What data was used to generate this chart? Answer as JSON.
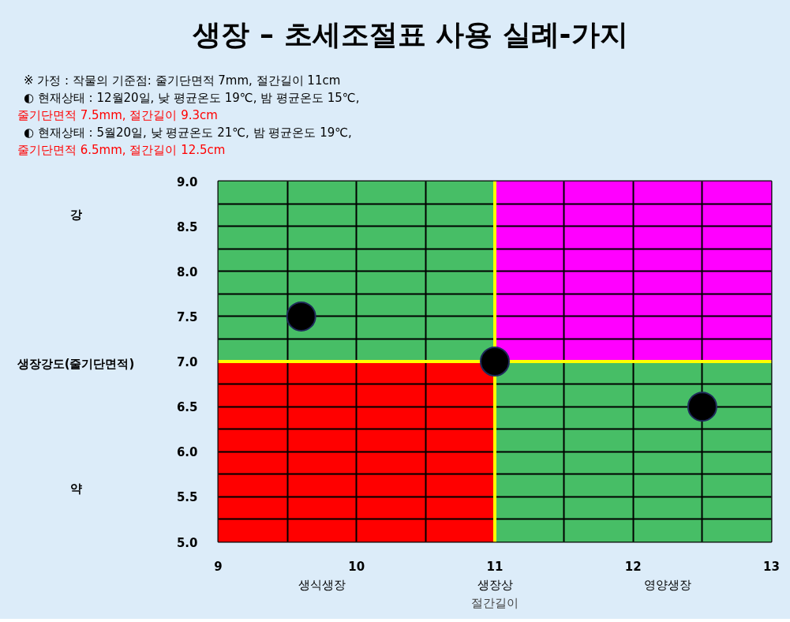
{
  "chart_data": {
    "type": "scatter",
    "title": "생장 – 초세조절표 사용 실례-가지",
    "xlabel": "절간길이",
    "ylabel": "생장강도(줄기단면적)",
    "xlim": [
      9,
      13
    ],
    "ylim": [
      5,
      9
    ],
    "xticks": [
      9,
      {
        "value": 9.5,
        "label": null
      },
      10,
      {
        "value": 10.5,
        "label": null
      },
      11,
      {
        "value": 11.5,
        "label": null
      },
      12,
      {
        "value": 12.5,
        "label": null
      },
      13
    ],
    "yticks": [
      {
        "value": 5.0,
        "label": "5.0"
      },
      {
        "value": 5.25,
        "label": null
      },
      {
        "value": 5.5,
        "label": "5.5"
      },
      {
        "value": 5.75,
        "label": null
      },
      {
        "value": 6.0,
        "label": "6.0"
      },
      {
        "value": 6.25,
        "label": null
      },
      {
        "value": 6.5,
        "label": "6.5"
      },
      {
        "value": 6.75,
        "label": null
      },
      {
        "value": 7.0,
        "label": "7.0"
      },
      {
        "value": 7.25,
        "label": null
      },
      {
        "value": 7.5,
        "label": "7.5"
      },
      {
        "value": 7.75,
        "label": null
      },
      {
        "value": 8.0,
        "label": "8.0"
      },
      {
        "value": 8.25,
        "label": null
      },
      {
        "value": 8.5,
        "label": "8.5"
      },
      {
        "value": 8.75,
        "label": null
      },
      {
        "value": 9.0,
        "label": "9.0"
      }
    ],
    "grid": true,
    "series": [
      {
        "type": "bar",
        "x": [
          10,
          12
        ],
        "base": [
          5,
          5
        ],
        "values": [
          2,
          2
        ],
        "colors": [
          "#ff0000",
          "#47be66"
        ]
      },
      {
        "type": "bar",
        "x": [
          10,
          12
        ],
        "base": [
          7,
          7
        ],
        "values": [
          2,
          2
        ],
        "colors": [
          "#47be66",
          "#ff00ff"
        ]
      },
      {
        "type": "line",
        "x": [
          11,
          11
        ],
        "values": [
          5,
          9
        ],
        "color": "#ffff00"
      },
      {
        "type": "line",
        "x": [
          9,
          13
        ],
        "values": [
          7,
          7
        ],
        "color": "#ffff00"
      },
      {
        "x": [
          9.6,
          11,
          12.5
        ],
        "values": [
          7.5,
          7,
          6.5
        ],
        "color": "#000000",
        "marker": "circle"
      }
    ],
    "annotations": [
      "※ 가정 : 작물의 기준점: 줄기단면적 7mm, 절간길이 11cm",
      "◐ 현재상태 : 12월20일, 낮 평균온도 19℃, 밤 평균온도 15℃,",
      "줄기단면적 7.5mm, 절간길이 9.3cm",
      "◐ 현재상태 : 5월20일, 낮 평균온도 21℃, 밤 평균온도 19℃,",
      "줄기단면적 6.5mm, 절간길이 12.5cm",
      "강",
      "약",
      "생식생장",
      "생장상",
      "영양생장"
    ]
  }
}
